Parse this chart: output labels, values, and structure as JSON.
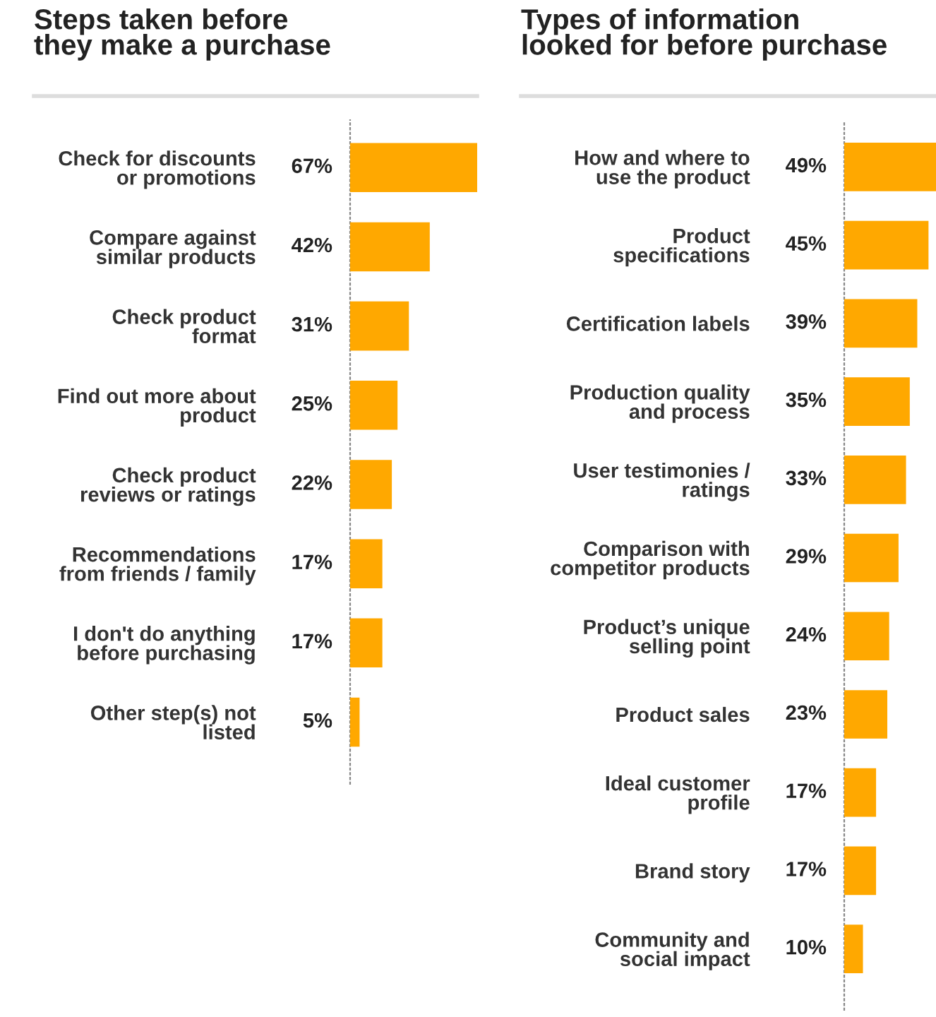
{
  "chart_data": [
    {
      "type": "bar",
      "orientation": "horizontal",
      "title": "Steps taken before\nthey make a purchase",
      "color": "#ffa800",
      "categories": [
        "Check for discounts\nor promotions",
        "Compare against\nsimilar products",
        "Check product\nformat",
        "Find out more about\nproduct",
        "Check product\nreviews or ratings",
        "Recommendations\nfrom friends / family",
        "I don't do anything\nbefore purchasing",
        "Other step(s) not\nlisted"
      ],
      "values": [
        67,
        42,
        31,
        25,
        22,
        17,
        17,
        5
      ],
      "value_labels": [
        "67%",
        "42%",
        "31%",
        "25%",
        "22%",
        "17%",
        "17%",
        "5%"
      ]
    },
    {
      "type": "bar",
      "orientation": "horizontal",
      "title": "Types of information\nlooked for before purchase",
      "color": "#ffa800",
      "categories": [
        "How and where to\nuse the product",
        "Product\nspecifications",
        "Certification labels",
        "Production quality\nand process",
        "User testimonies /\nratings",
        "Comparison with\ncompetitor products",
        "Product’s unique\nselling point",
        "Product sales",
        "Ideal customer\nprofile",
        "Brand story",
        "Community and\nsocial impact"
      ],
      "values": [
        49,
        45,
        39,
        35,
        33,
        29,
        24,
        23,
        17,
        17,
        10
      ],
      "value_labels": [
        "49%",
        "45%",
        "39%",
        "35%",
        "33%",
        "29%",
        "24%",
        "23%",
        "17%",
        "17%",
        "10%"
      ]
    }
  ]
}
